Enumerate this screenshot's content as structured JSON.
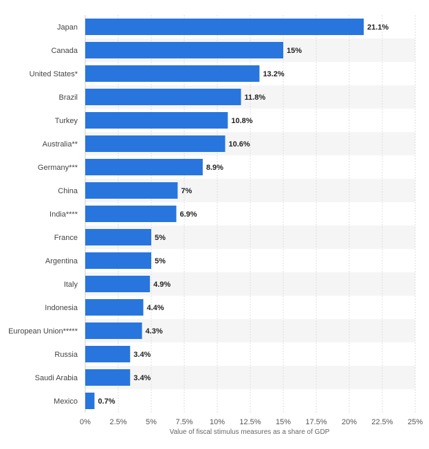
{
  "chart_data": {
    "type": "bar",
    "orientation": "horizontal",
    "categories": [
      "Japan",
      "Canada",
      "United States*",
      "Brazil",
      "Turkey",
      "Australia**",
      "Germany***",
      "China",
      "India****",
      "France",
      "Argentina",
      "Italy",
      "Indonesia",
      "European Union*****",
      "Russia",
      "Saudi Arabia",
      "Mexico"
    ],
    "values": [
      21.1,
      15,
      13.2,
      11.8,
      10.8,
      10.6,
      8.9,
      7,
      6.9,
      5,
      5,
      4.9,
      4.4,
      4.3,
      3.4,
      3.4,
      0.7
    ],
    "value_labels": [
      "21.1%",
      "15%",
      "13.2%",
      "11.8%",
      "10.8%",
      "10.6%",
      "8.9%",
      "7%",
      "6.9%",
      "5%",
      "5%",
      "4.9%",
      "4.4%",
      "4.3%",
      "3.4%",
      "3.4%",
      "0.7%"
    ],
    "xticks": [
      0,
      2.5,
      5,
      7.5,
      10,
      12.5,
      15,
      17.5,
      20,
      22.5,
      25
    ],
    "xtick_labels": [
      "0%",
      "2.5%",
      "5%",
      "7.5%",
      "10%",
      "12.5%",
      "15%",
      "17.5%",
      "20%",
      "22.5%",
      "25%"
    ],
    "xlim": [
      0,
      25
    ],
    "xlabel": "Value of fiscal stimulus measures as a share of GDP",
    "ylabel": "",
    "title": "",
    "grid": "vertical dashed",
    "legend": "none",
    "bar_color": "#2876dd",
    "band_color": "#f5f5f5"
  }
}
